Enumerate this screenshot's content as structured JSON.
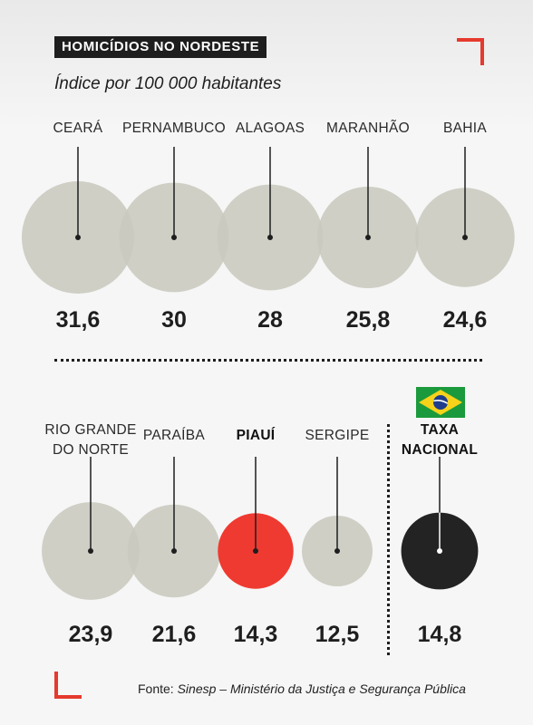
{
  "header": {
    "title": "HOMICÍDIOS NO NORDESTE",
    "subtitle": "Índice por 100 000 habitantes"
  },
  "colors": {
    "state": "#c9c9bf",
    "highlight": "#ef3a31",
    "national": "#232323",
    "accent": "#e53a2f"
  },
  "chart_data": {
    "type": "bubble",
    "title": "HOMICÍDIOS NO NORDESTE",
    "subtitle": "Índice por 100 000 habitantes",
    "value_labels": [
      "31,6",
      "30",
      "28",
      "25,8",
      "24,6",
      "23,9",
      "21,6",
      "14,3",
      "12,5",
      "14,8"
    ],
    "series": [
      {
        "categories": [
          "CEARÁ",
          "PERNAMBUCO",
          "ALAGOAS",
          "MARANHÃO",
          "BAHIA",
          "RIO GRANDE DO NORTE",
          "PARAÍBA",
          "PIAUÍ",
          "SERGIPE",
          "TAXA NACIONAL"
        ],
        "values": [
          31.6,
          30,
          28,
          25.8,
          24.6,
          23.9,
          21.6,
          14.3,
          12.5,
          14.8
        ]
      }
    ],
    "label_lines": [
      [
        "CEARÁ"
      ],
      [
        "PERNAMBUCO"
      ],
      [
        "ALAGOAS"
      ],
      [
        "MARANHÃO"
      ],
      [
        "BAHIA"
      ],
      [
        "RIO GRANDE",
        "DO NORTE"
      ],
      [
        "PARAÍBA"
      ],
      [
        "PIAUÍ"
      ],
      [
        "SERGIPE"
      ],
      [
        "TAXA",
        "NACIONAL"
      ]
    ],
    "highlight": "PIAUÍ",
    "national": "TAXA NACIONAL"
  },
  "flag": {
    "icon": "brazil-flag-icon"
  },
  "source": {
    "prefix": "Fonte: ",
    "text": "Sinesp – Ministério da Justiça e Segurança Pública"
  }
}
